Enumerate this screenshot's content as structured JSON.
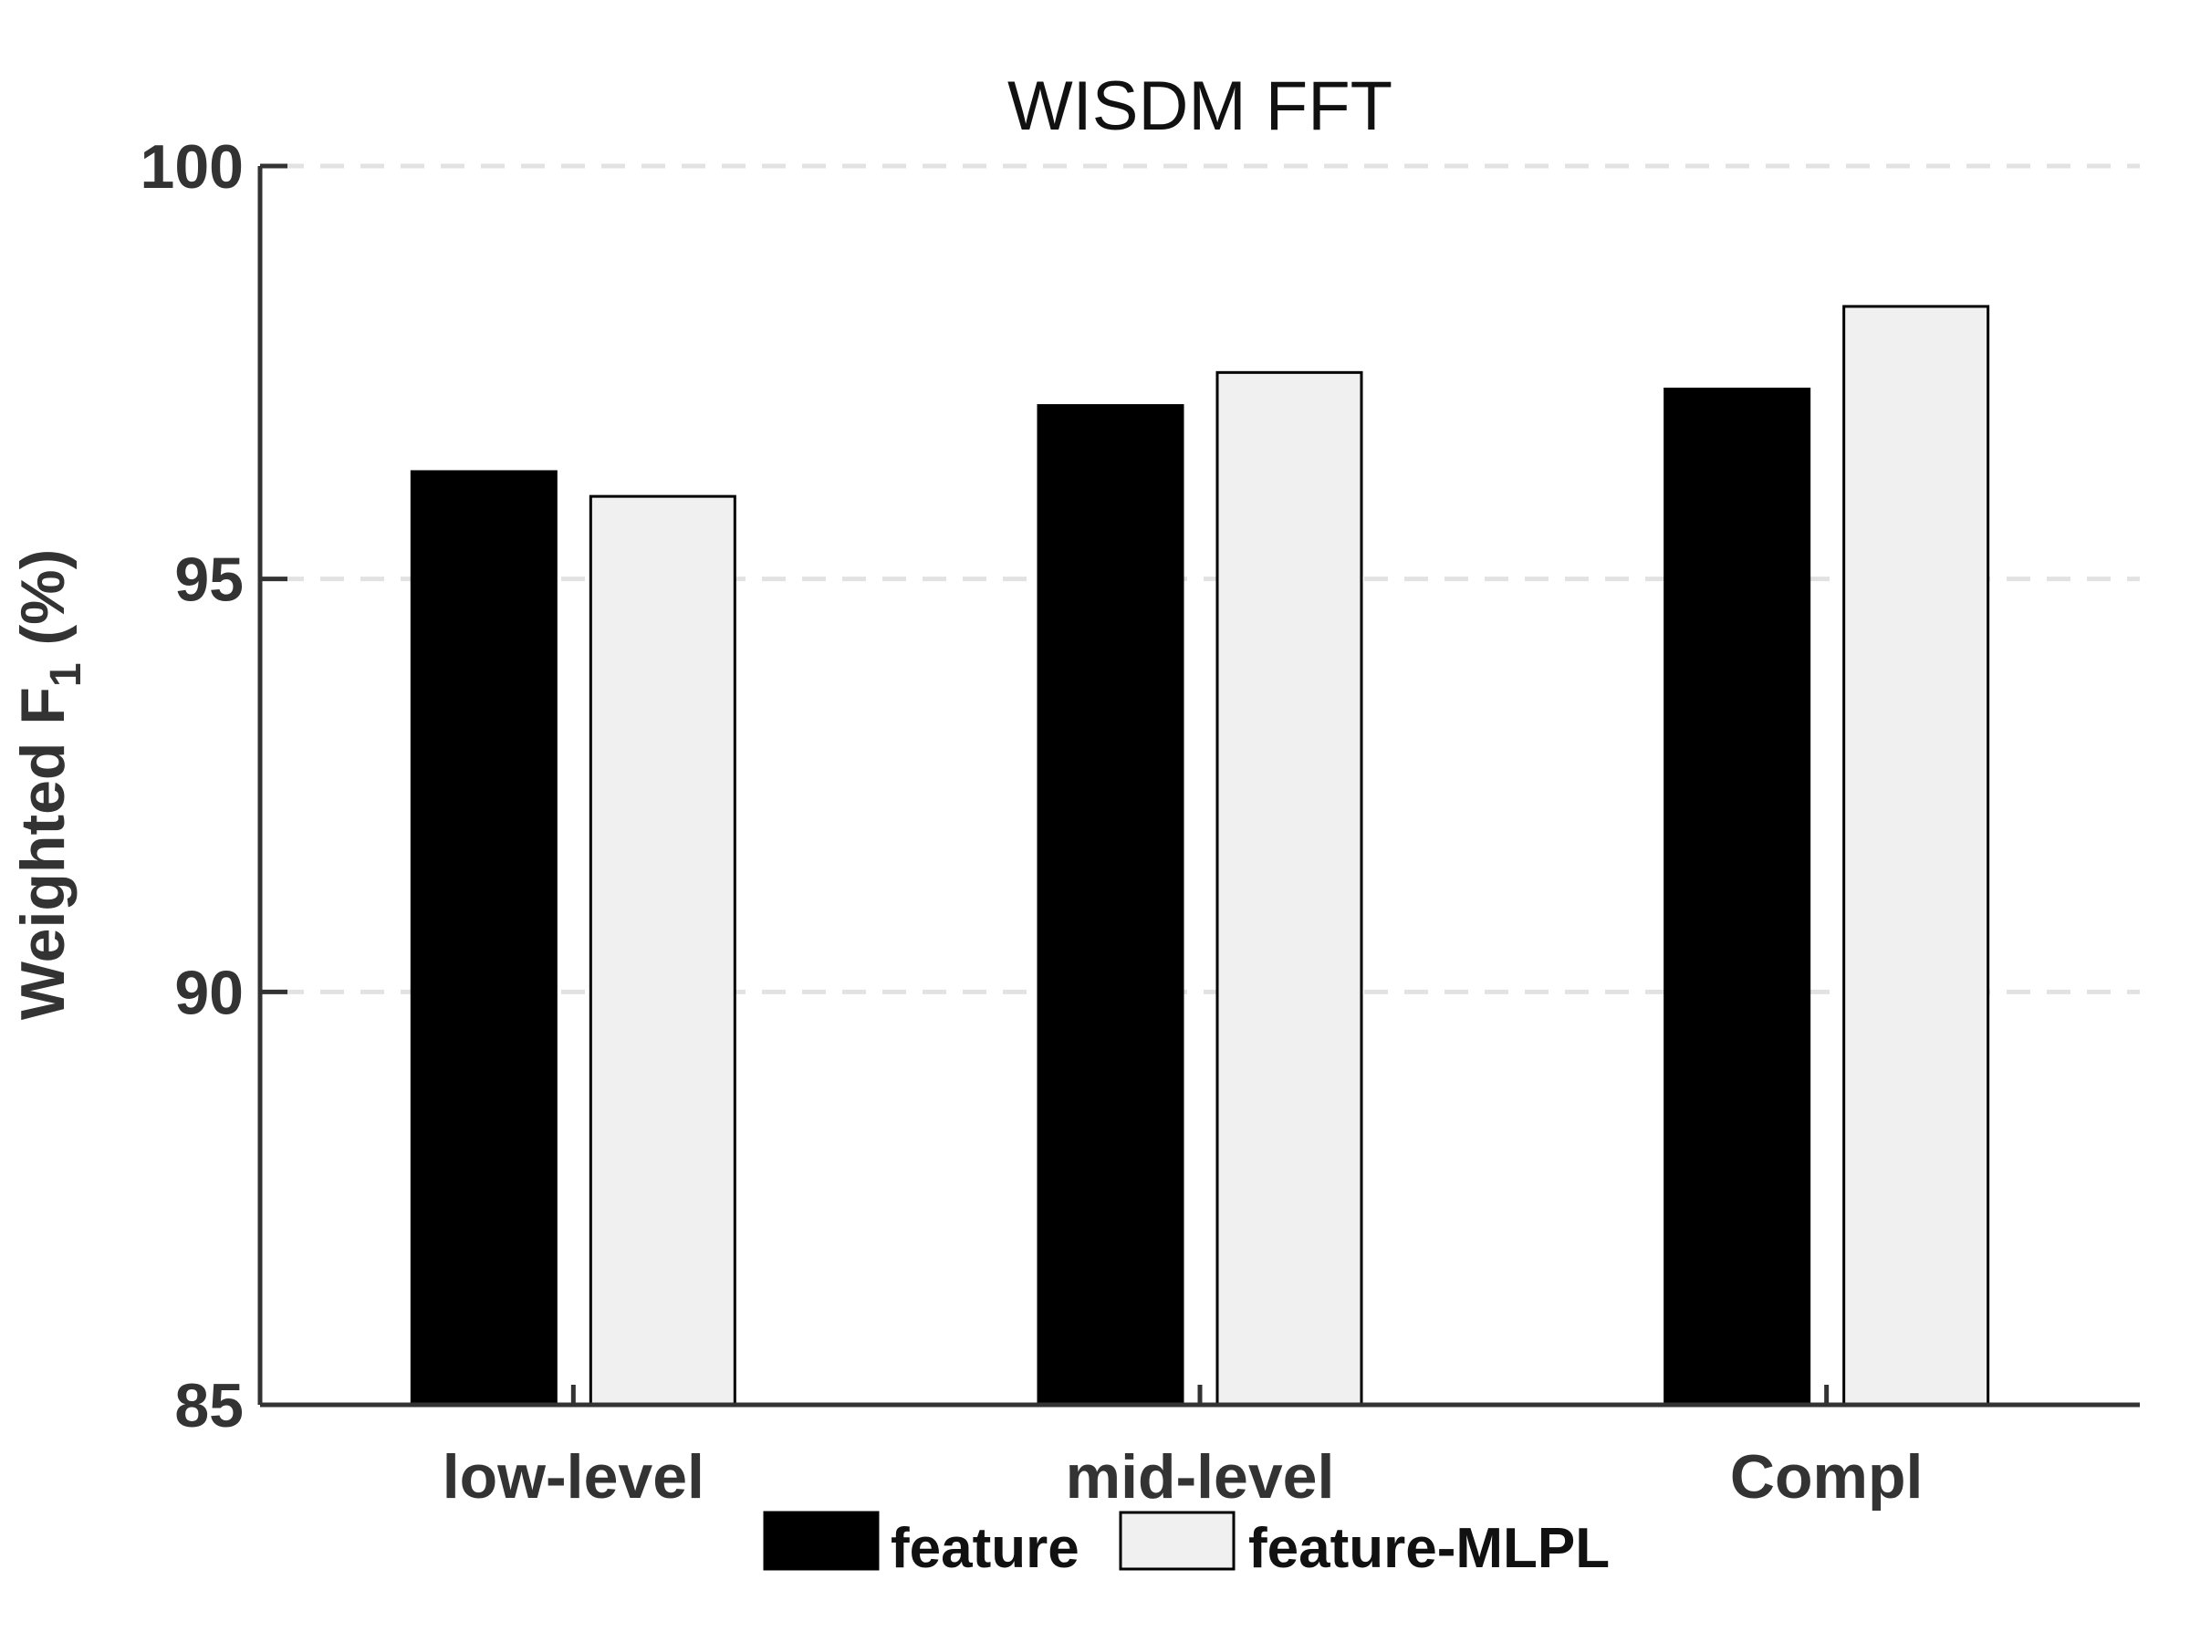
{
  "chart_data": {
    "type": "bar",
    "title": "WISDM   FFT",
    "xlabel": "",
    "ylabel_main": "Weighted  F",
    "ylabel_sub": "1",
    "ylabel_tail": " (%)",
    "categories": [
      "low-level",
      "mid-level",
      "Compl"
    ],
    "series": [
      {
        "name": "feature",
        "values": [
          96.3,
          97.1,
          97.3
        ],
        "color": "#000000"
      },
      {
        "name": "feature-MLPL",
        "values": [
          96.0,
          97.5,
          98.3
        ],
        "color": "#f0f0f0"
      }
    ],
    "ylim": [
      85,
      100
    ],
    "yticks": [
      "85",
      "90",
      "95",
      "100"
    ],
    "grid": true,
    "legend_position": "bottom"
  }
}
